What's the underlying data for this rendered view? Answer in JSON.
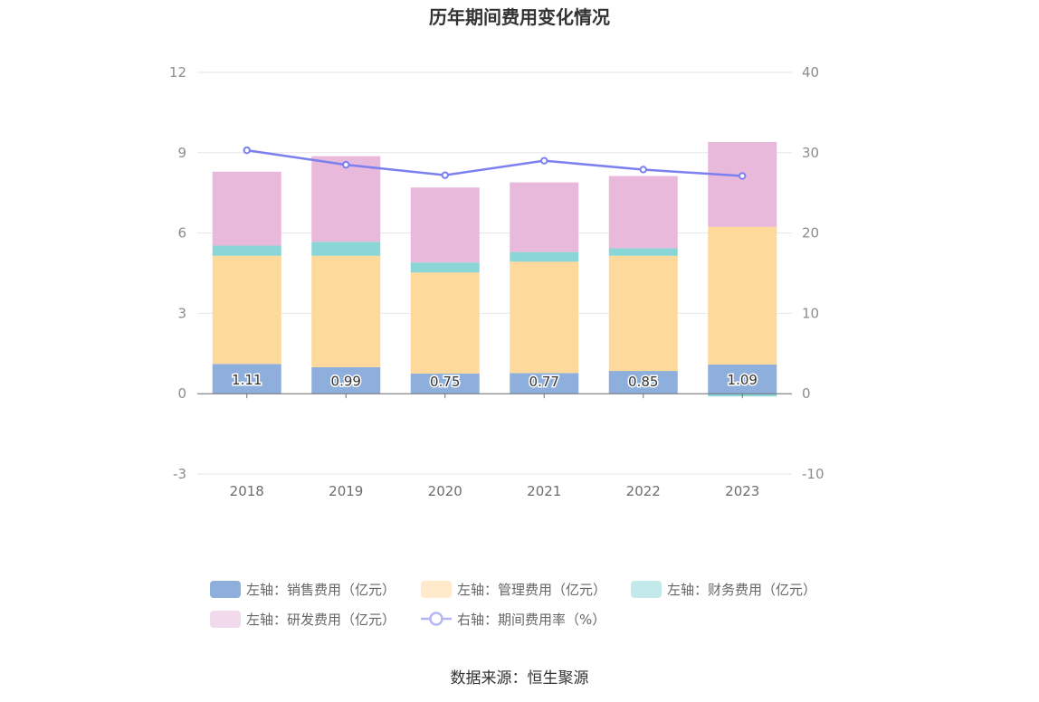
{
  "chart_data": {
    "type": "bar",
    "stacked": true,
    "title": "历年期间费用变化情况",
    "categories": [
      "2018",
      "2019",
      "2020",
      "2021",
      "2022",
      "2023"
    ],
    "left_axis": {
      "min": -3,
      "max": 12,
      "ticks": [
        "12",
        "9",
        "6",
        "3",
        "0",
        "-3"
      ]
    },
    "right_axis": {
      "min": -10,
      "max": 40,
      "ticks": [
        "40",
        "30",
        "20",
        "10",
        "0",
        "-10"
      ]
    },
    "series": [
      {
        "name": "左轴：销售费用（亿元）",
        "axis": "left",
        "color": "#8eaedc",
        "values": [
          1.11,
          0.99,
          0.75,
          0.77,
          0.85,
          1.09
        ],
        "labels": [
          "1.11",
          "0.99",
          "0.75",
          "0.77",
          "0.85",
          "1.09"
        ]
      },
      {
        "name": "左轴：管理费用（亿元）",
        "axis": "left",
        "color": "#fdd99b",
        "values": [
          4.04,
          4.16,
          3.78,
          4.16,
          4.3,
          5.14
        ]
      },
      {
        "name": "左轴：财务费用（亿元）",
        "axis": "left",
        "color": "#8ad6d6",
        "values": [
          0.38,
          0.52,
          0.37,
          0.36,
          0.28,
          -0.1
        ]
      },
      {
        "name": "左轴：研发费用（亿元）",
        "axis": "left",
        "color": "#e8b9db",
        "values": [
          2.76,
          3.2,
          2.8,
          2.6,
          2.7,
          3.17
        ]
      },
      {
        "name": "右轴：期间费用率（%）",
        "axis": "right",
        "type": "line",
        "color": "#7b7fef",
        "values": [
          30.3,
          28.5,
          27.2,
          29.0,
          27.9,
          27.1
        ]
      }
    ],
    "legend_placement": "bottom",
    "legend_colors": [
      "#8eaedc",
      "#ffebcc",
      "#c3e9eb",
      "#f1daec",
      "#b5b7f5"
    ]
  },
  "source": "数据来源：恒生聚源"
}
